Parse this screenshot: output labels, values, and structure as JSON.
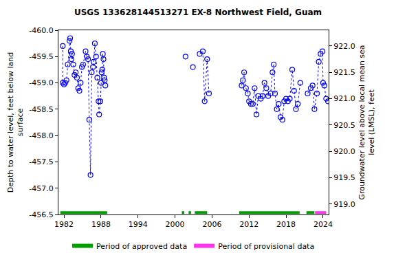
{
  "chart_data": {
    "type": "scatter",
    "title": "USGS 133628144513271 EX-8 Northwest Field, Guam",
    "ylabel": [
      "Depth to water level, feet below land",
      "surface"
    ],
    "y2label": [
      "Groundwater level above local mean sea",
      "level (LMSL), feet"
    ],
    "grid": false,
    "xlim": [
      1981.1,
      2024.9
    ],
    "xticks": [
      1982,
      1988,
      1994,
      2000,
      2006,
      2012,
      2018,
      2024
    ],
    "ylim": [
      -456.5,
      -460.0
    ],
    "yticks": [
      {
        "value": -460.0,
        "label": "-460.0"
      },
      -459.5,
      {
        "value": -459.0,
        "label": "-459.0"
      },
      -458.5,
      {
        "value": -458.0,
        "label": "-458.0"
      },
      -457.5,
      {
        "value": -457.0,
        "label": "-457.0"
      },
      -456.5
    ],
    "y2lim": [
      918.8,
      922.3
    ],
    "y2ticks": [
      {
        "value": 919.0,
        "label": "919.0"
      },
      919.5,
      {
        "value": 920.0,
        "label": "920.0"
      },
      920.5,
      {
        "value": 921.0,
        "label": "921.0"
      },
      921.5,
      {
        "value": 922.0,
        "label": "922.0"
      }
    ],
    "series": [
      {
        "color": "#0000ff",
        "marker": "circle-open",
        "line_style": "dot",
        "x": [
          1981.8,
          1981.8,
          1982.0,
          1982.2,
          1982.4,
          1982.6,
          1982.9,
          1983.0,
          1983.1,
          1983.2,
          1983.3,
          1983.5,
          1983.7,
          1983.9,
          1984.1,
          1984.3,
          1984.5,
          1984.7,
          1984.9,
          1985.1,
          1985.5,
          1985.7,
          1985.9,
          1986.1,
          1986.3,
          1986.5,
          1986.7,
          1986.8,
          1987.0,
          1987.2,
          1987.4,
          1987.6,
          1987.7,
          1987.9,
          1988.0,
          1988.1,
          1988.2,
          1988.3,
          1988.4,
          1988.5,
          1988.6,
          1988.7,
          null,
          2001.7,
          null,
          2002.9,
          null,
          2004.0,
          2004.5,
          2004.8,
          2005.2,
          2005.5,
          null,
          2010.8,
          2011.0,
          2011.2,
          2011.5,
          2011.8,
          2012.0,
          2012.3,
          2012.6,
          2012.9,
          2013.2,
          2013.5,
          2013.9,
          2014.2,
          2014.5,
          2014.8,
          2015.1,
          2015.5,
          2015.8,
          2016.0,
          2016.2,
          2016.5,
          2016.8,
          2017.1,
          2017.4,
          2017.7,
          2018.0,
          2018.3,
          2018.6,
          2019.0,
          2019.3,
          2019.6,
          2019.9,
          2020.3,
          null,
          2021.5,
          2022.0,
          2022.3,
          2022.6,
          2023.0,
          2023.3,
          2023.6,
          2023.9,
          2024.0,
          2024.2,
          2024.5,
          2024.8
        ],
        "values": [
          -459.7,
          -459.0,
          -458.97,
          -459.0,
          -459.05,
          -459.35,
          -459.8,
          -459.85,
          -459.6,
          -459.45,
          -459.55,
          -459.35,
          -459.15,
          -459.2,
          -459.1,
          -458.9,
          -458.85,
          -459.0,
          -459.3,
          -459.35,
          -459.6,
          -459.5,
          -459.45,
          -458.3,
          -457.25,
          -459.2,
          -459.3,
          -459.4,
          -459.75,
          -459.5,
          -459.1,
          -458.65,
          -458.4,
          -458.65,
          -459.0,
          -459.2,
          -459.25,
          -459.55,
          -459.45,
          -459.1,
          -459.05,
          -458.95,
          null,
          -459.5,
          null,
          -459.3,
          null,
          -459.55,
          -459.6,
          -458.65,
          -459.45,
          -458.8,
          null,
          -458.95,
          -459.05,
          -459.2,
          -458.9,
          -458.8,
          -458.65,
          -458.6,
          -458.6,
          -458.9,
          -458.4,
          -458.75,
          -458.7,
          -458.75,
          -459.0,
          -458.9,
          -458.75,
          -458.8,
          -459.2,
          -459.35,
          -458.8,
          -458.5,
          -458.6,
          -458.35,
          -458.3,
          -458.65,
          -458.7,
          -458.65,
          -458.7,
          -459.25,
          -458.85,
          -458.5,
          -458.6,
          -459.0,
          null,
          -458.8,
          -458.9,
          -458.95,
          -458.5,
          -458.8,
          -459.4,
          -459.55,
          -459.6,
          -459.0,
          -458.95,
          -458.7,
          -458.65
        ]
      }
    ],
    "periods": [
      {
        "name": "Period of approved data",
        "color": "#00a000",
        "ranges": [
          [
            1981.4,
            1989.0
          ],
          [
            2001.1,
            2001.5
          ],
          [
            2002.2,
            2002.6
          ],
          [
            2003.2,
            2005.2
          ],
          [
            2010.4,
            2020.2
          ],
          [
            2021.3,
            2022.6
          ]
        ]
      },
      {
        "name": "Period of provisional data",
        "color": "#ff33ee",
        "ranges": [
          [
            2022.7,
            2024.5
          ]
        ]
      }
    ]
  }
}
